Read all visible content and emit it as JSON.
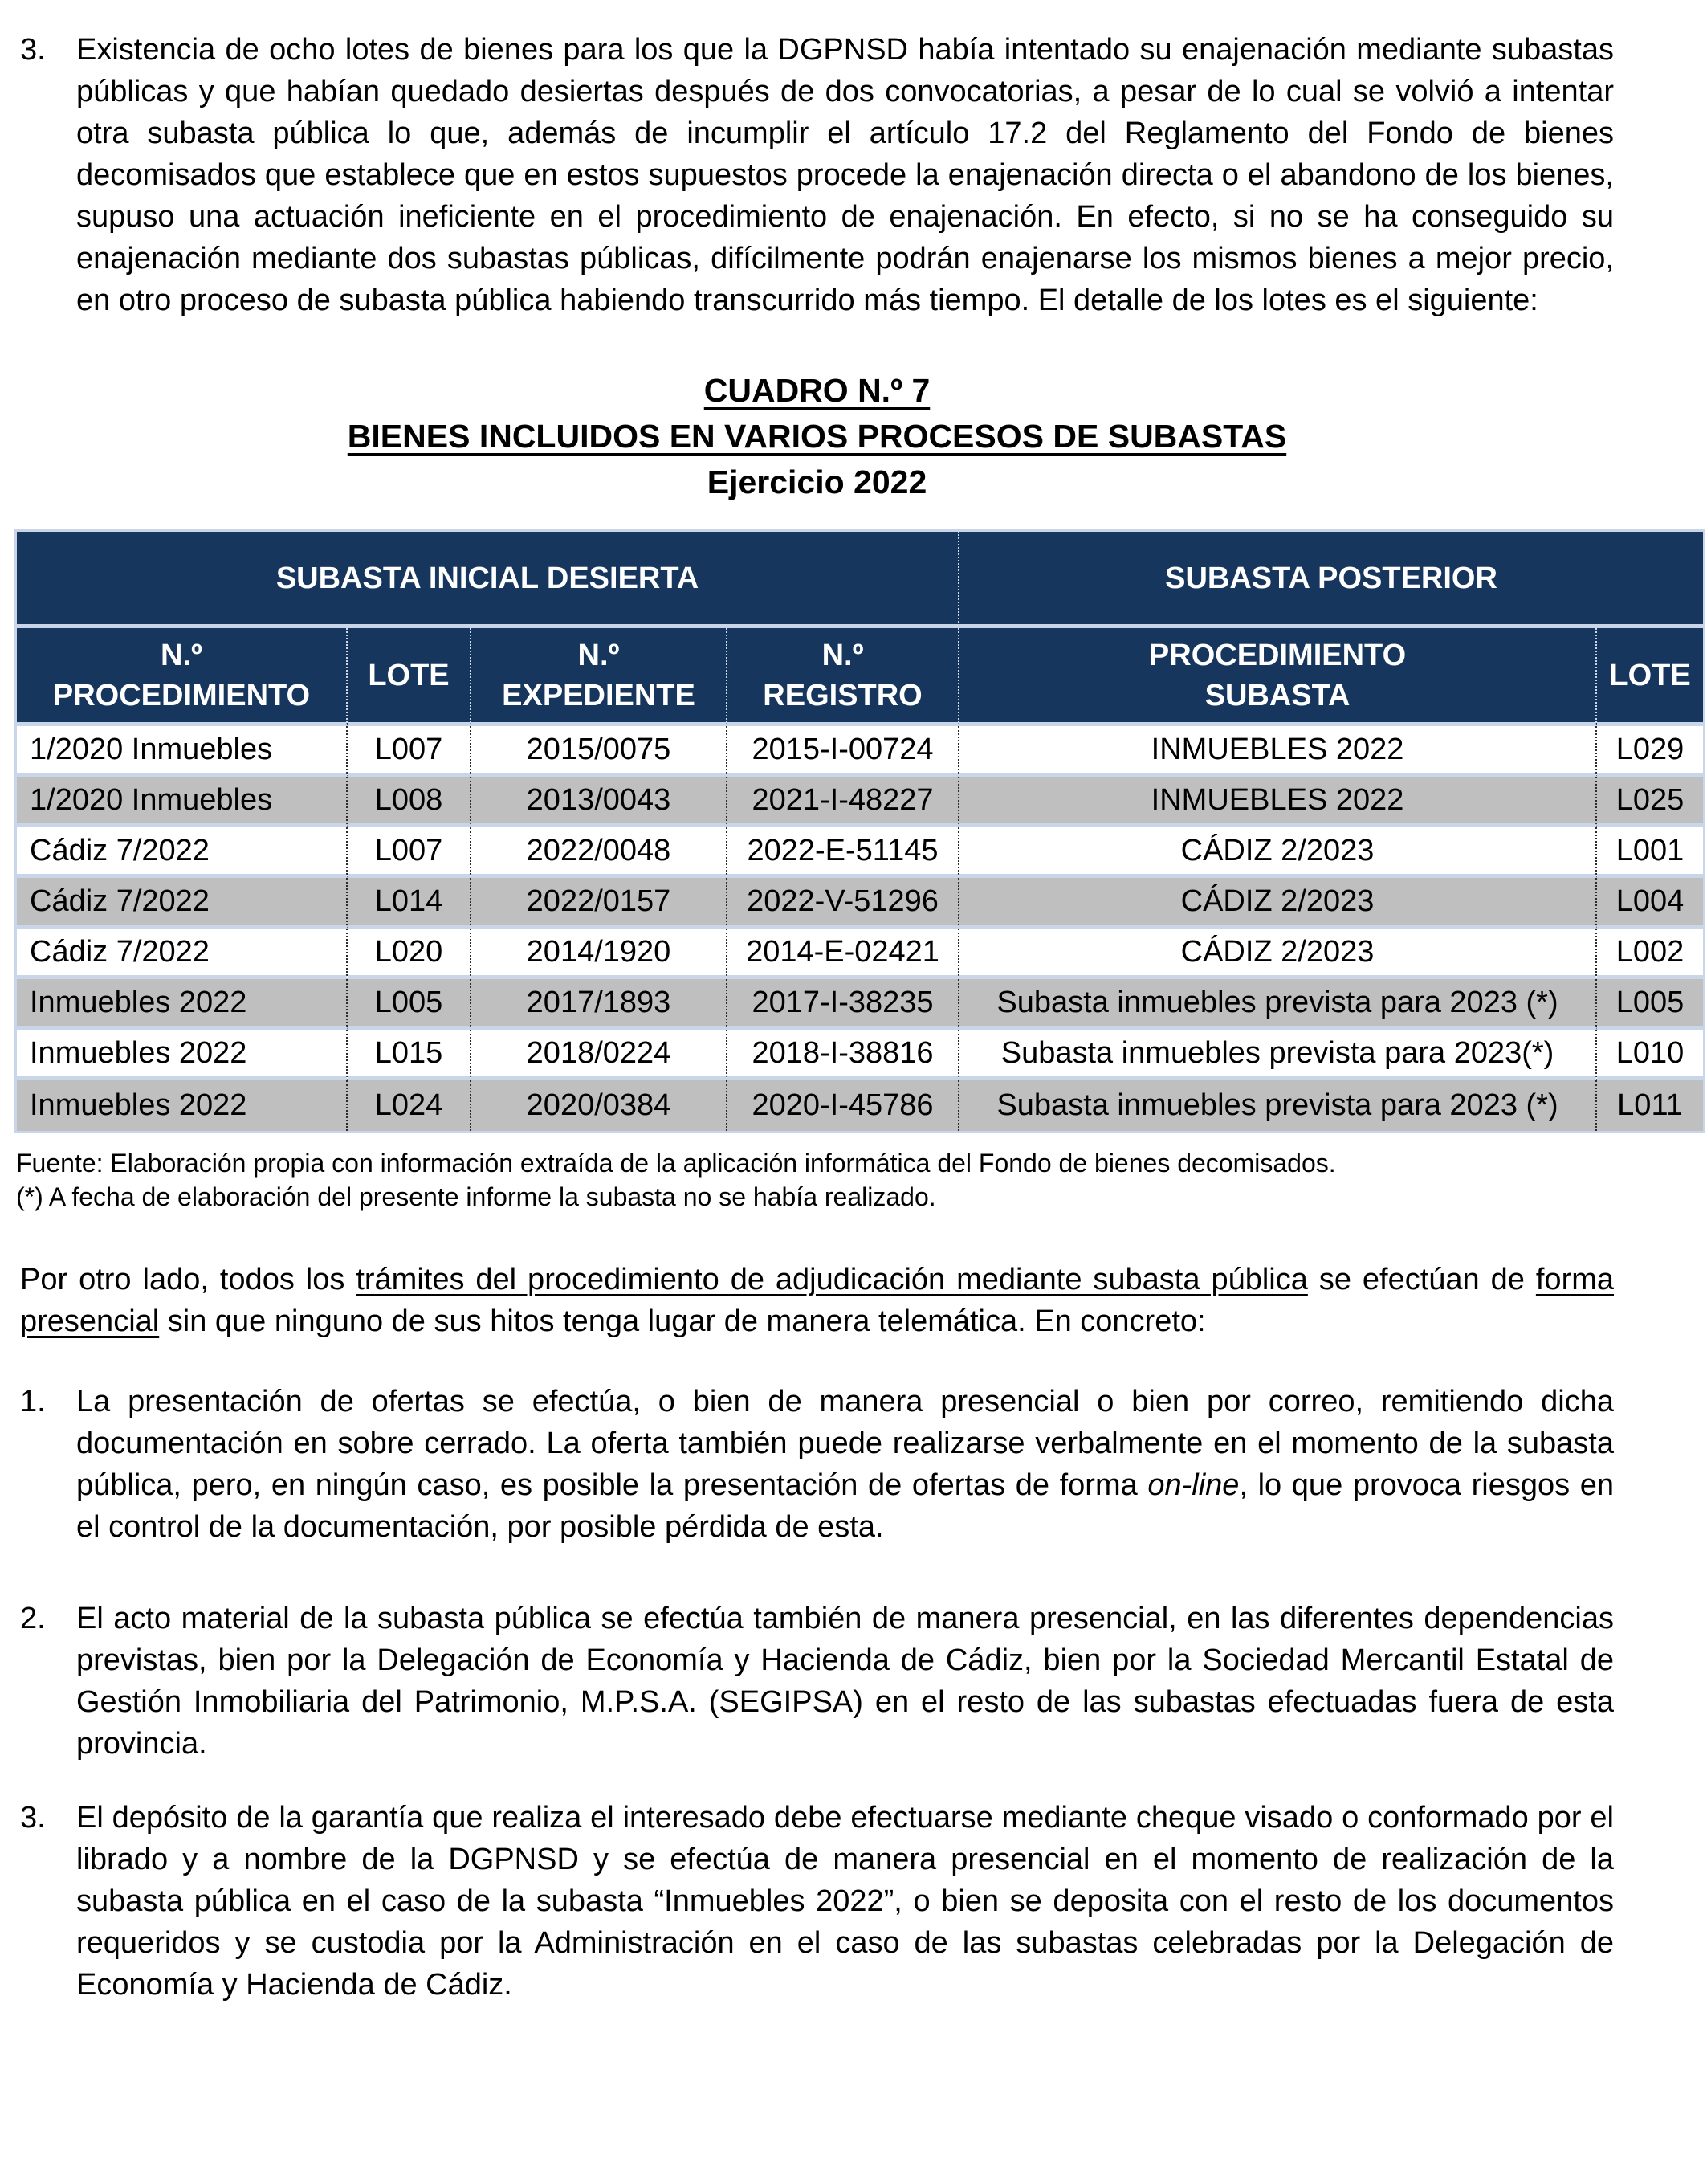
{
  "colors": {
    "header_bg": "#17365D",
    "row_alt_bg": "#BFBFBF",
    "row_separator": "#C9D6EA",
    "column_divider": "#2B2B2B"
  },
  "intro": {
    "number": "3.",
    "text": "Existencia de ocho lotes de bienes para los que la DGPNSD había intentado su enajenación mediante subastas públicas y que habían quedado desiertas después de dos convocatorias, a pesar de lo cual se volvió a intentar otra subasta pública lo que, además de incumplir el artículo 17.2 del Reglamento del Fondo de bienes decomisados que establece que en estos supuestos procede la enajenación directa o el abandono de los bienes, supuso una actuación ineficiente en el procedimiento de enajenación. En efecto, si no se ha conseguido su enajenación mediante dos subastas públicas, difícilmente podrán enajenarse los mismos bienes a mejor precio, en otro proceso de subasta pública habiendo transcurrido más tiempo. El detalle de los lotes es el siguiente:"
  },
  "title": {
    "line1": "CUADRO N.º 7",
    "line2": "BIENES INCLUIDOS EN VARIOS PROCESOS DE SUBASTAS",
    "line3": "Ejercicio 2022"
  },
  "table": {
    "group_headers": [
      "SUBASTA INICIAL DESIERTA",
      "SUBASTA POSTERIOR"
    ],
    "col_headers": [
      "N.º\nPROCEDIMIENTO",
      "LOTE",
      "N.º\nEXPEDIENTE",
      "N.º\nREGISTRO",
      "PROCEDIMIENTO\nSUBASTA",
      "LOTE"
    ],
    "rows": [
      [
        "1/2020 Inmuebles",
        "L007",
        "2015/0075",
        "2015-I-00724",
        "INMUEBLES 2022",
        "L029"
      ],
      [
        "1/2020 Inmuebles",
        "L008",
        "2013/0043",
        "2021-I-48227",
        "INMUEBLES 2022",
        "L025"
      ],
      [
        "Cádiz 7/2022",
        "L007",
        "2022/0048",
        "2022-E-51145",
        "CÁDIZ 2/2023",
        "L001"
      ],
      [
        "Cádiz 7/2022",
        "L014",
        "2022/0157",
        "2022-V-51296",
        "CÁDIZ 2/2023",
        "L004"
      ],
      [
        "Cádiz 7/2022",
        "L020",
        "2014/1920",
        "2014-E-02421",
        "CÁDIZ 2/2023",
        "L002"
      ],
      [
        "Inmuebles 2022",
        "L005",
        "2017/1893",
        "2017-I-38235",
        "Subasta inmuebles prevista para 2023 (*)",
        "L005"
      ],
      [
        "Inmuebles 2022",
        "L015",
        "2018/0224",
        "2018-I-38816",
        "Subasta inmuebles prevista para 2023(*)",
        "L010"
      ],
      [
        "Inmuebles 2022",
        "L024",
        "2020/0384",
        "2020-I-45786",
        "Subasta inmuebles prevista para 2023 (*)",
        "L011"
      ]
    ],
    "source_note": "Fuente: Elaboración propia con información extraída de la aplicación informática del Fondo de bienes decomisados.",
    "asterisk_note": "(*) A fecha de elaboración del presente informe la subasta no se había realizado."
  },
  "lead_paragraph": {
    "segments": [
      {
        "t": "Por otro lado, todos los "
      },
      {
        "t": "trámites del procedimiento de adjudicación mediante subasta pública",
        "u": true
      },
      {
        "t": " se efectúan de "
      },
      {
        "t": "forma presencial",
        "u": true
      },
      {
        "t": " sin que ninguno de sus hitos tenga lugar de manera telemática. En concreto:"
      }
    ]
  },
  "list": {
    "item1": {
      "number": "1.",
      "segments": [
        {
          "t": "La presentación de ofertas se efectúa, o bien de manera presencial o bien por correo, remitiendo dicha documentación en sobre cerrado. La oferta también puede realizarse verbalmente en el momento de la subasta pública, pero, en ningún caso, es posible la presentación de ofertas de forma "
        },
        {
          "t": "on-line",
          "i": true
        },
        {
          "t": ", lo que provoca riesgos en el control de la documentación, por posible pérdida de esta."
        }
      ]
    },
    "item2": {
      "number": "2.",
      "text": "El acto material de la subasta pública se efectúa también de manera presencial, en las diferentes dependencias previstas, bien por la Delegación de Economía y Hacienda de Cádiz, bien por la Sociedad Mercantil Estatal de Gestión Inmobiliaria del Patrimonio, M.P.S.A. (SEGIPSA) en el resto de las subastas efectuadas fuera de esta provincia."
    },
    "item3": {
      "number": "3.",
      "text": "El depósito de la garantía que realiza el interesado debe efectuarse mediante cheque visado o conformado por el librado y a nombre de la DGPNSD y se efectúa de manera presencial en el momento de realización de la subasta pública en el caso de la subasta “Inmuebles 2022”, o bien se deposita con el resto de los documentos requeridos y se custodia por la Administración en el caso de las subastas celebradas por la Delegación de Economía y Hacienda de Cádiz."
    }
  }
}
